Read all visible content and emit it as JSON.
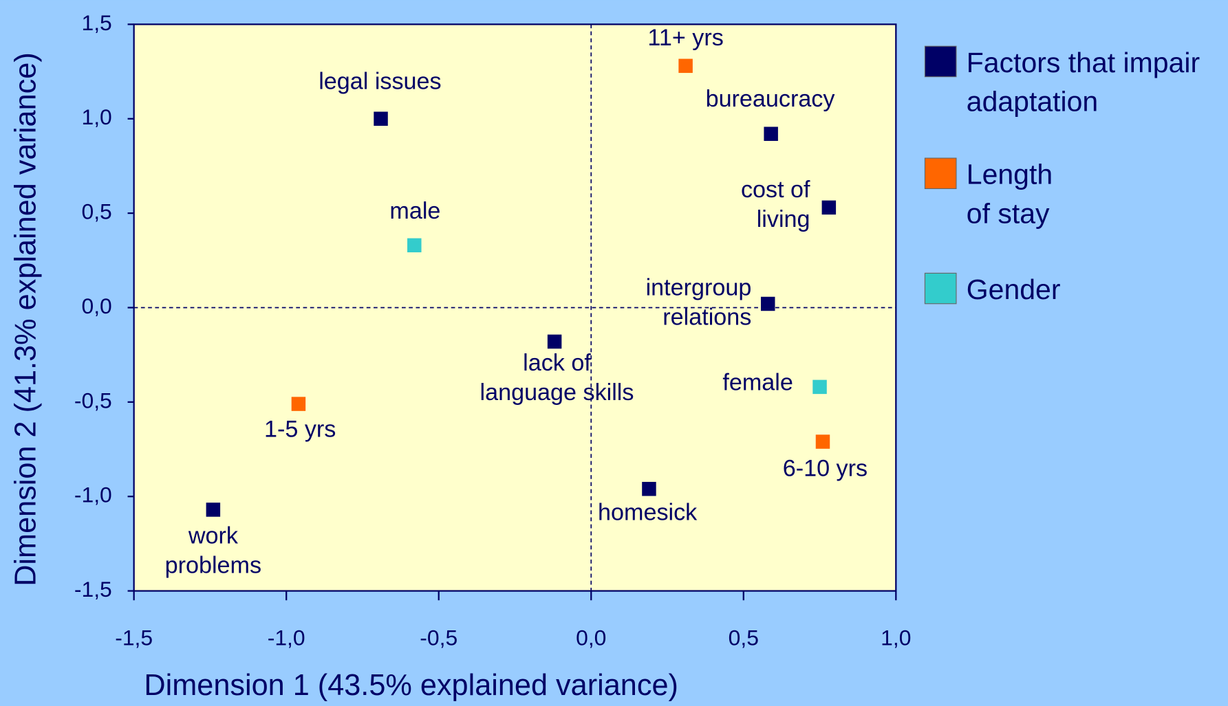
{
  "chart_data": {
    "type": "scatter",
    "xlabel": "Dimension 1 (43.5% explained variance)",
    "ylabel": "Dimension 2 (41.3% explained variance)",
    "xlim": [
      -1.5,
      1.0
    ],
    "ylim": [
      -1.5,
      1.5
    ],
    "xticks": [
      {
        "value": -1.5,
        "label": "-1,5"
      },
      {
        "value": -1.0,
        "label": "-1,0"
      },
      {
        "value": -0.5,
        "label": "-0,5"
      },
      {
        "value": 0.0,
        "label": "0,0"
      },
      {
        "value": 0.5,
        "label": "0,5"
      },
      {
        "value": 1.0,
        "label": "1,0"
      }
    ],
    "yticks": [
      {
        "value": -1.5,
        "label": "-1,5"
      },
      {
        "value": -1.0,
        "label": "-1,0"
      },
      {
        "value": -0.5,
        "label": "-0,5"
      },
      {
        "value": 0.0,
        "label": "0,0"
      },
      {
        "value": 0.5,
        "label": "0,5"
      },
      {
        "value": 1.0,
        "label": "1,0"
      },
      {
        "value": 1.5,
        "label": "1,5"
      }
    ],
    "legend": "right",
    "series": [
      {
        "name": "Factors that impair adaptation",
        "color": "#000066",
        "x": [
          -0.69,
          0.59,
          0.78,
          0.58,
          -0.12,
          0.19,
          -1.24
        ],
        "y": [
          1.0,
          0.92,
          0.53,
          0.02,
          -0.18,
          -0.96,
          -1.07
        ],
        "labels": [
          [
            "legal issues"
          ],
          [
            "bureaucracy"
          ],
          [
            "cost of",
            "living"
          ],
          [
            "intergroup",
            "relations"
          ],
          [
            "lack of",
            "language skills"
          ],
          [
            "homesick"
          ],
          [
            "work",
            "problems"
          ]
        ]
      },
      {
        "name": "Length of stay",
        "color": "#ff6600",
        "x": [
          -0.96,
          0.76,
          0.31
        ],
        "y": [
          -0.51,
          -0.71,
          1.28
        ],
        "labels": [
          [
            "1-5 yrs"
          ],
          [
            "6-10 yrs"
          ],
          [
            "11+ yrs"
          ]
        ]
      },
      {
        "name": "Gender",
        "color": "#33cccc",
        "x": [
          -0.58,
          0.75
        ],
        "y": [
          0.33,
          -0.42
        ],
        "labels": [
          [
            "male"
          ],
          [
            "female"
          ]
        ]
      }
    ]
  }
}
